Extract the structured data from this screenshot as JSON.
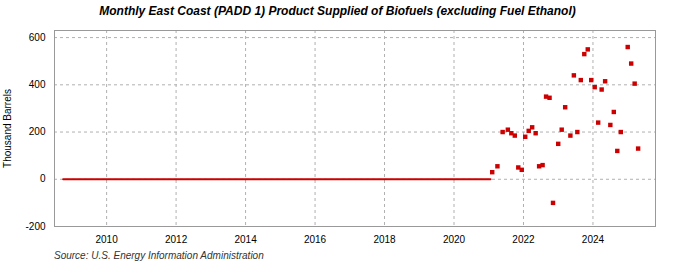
{
  "chart_data": {
    "type": "scatter",
    "title": "Monthly East Coast (PADD 1) Product Supplied of Biofuels (excluding Fuel Ethanol)",
    "ylabel": "Thousand Barrels",
    "source": "Source: U.S. Energy Information Administration",
    "xlim": [
      2008.5,
      2025.8
    ],
    "ylim": [
      -200,
      630
    ],
    "xticks": [
      2010,
      2012,
      2014,
      2016,
      2018,
      2020,
      2022,
      2024
    ],
    "yticks": [
      -200,
      0,
      200,
      400,
      600
    ],
    "grid": true,
    "series": [
      {
        "type": "line",
        "color": "#cc0000",
        "line_style": "solid",
        "x": [
          2008.75,
          2021.05
        ],
        "values": [
          0,
          0
        ]
      },
      {
        "type": "scatter",
        "color": "#cc0000",
        "marker": "square",
        "x": [
          2021.1,
          2021.25,
          2021.4,
          2021.55,
          2021.65,
          2021.75,
          2021.85,
          2021.95,
          2022.05,
          2022.15,
          2022.25,
          2022.35,
          2022.45,
          2022.55,
          2022.65,
          2022.75,
          2022.85,
          2023.0,
          2023.1,
          2023.2,
          2023.35,
          2023.45,
          2023.55,
          2023.65,
          2023.75,
          2023.85,
          2023.95,
          2024.05,
          2024.15,
          2024.25,
          2024.35,
          2024.5,
          2024.6,
          2024.7,
          2024.8,
          2025.0,
          2025.1,
          2025.2,
          2025.3
        ],
        "values": [
          30,
          55,
          200,
          210,
          195,
          185,
          50,
          40,
          180,
          205,
          220,
          195,
          55,
          60,
          350,
          345,
          -100,
          150,
          210,
          305,
          185,
          440,
          200,
          420,
          530,
          550,
          420,
          390,
          240,
          380,
          415,
          230,
          285,
          120,
          200,
          560,
          490,
          405,
          130
        ]
      }
    ]
  }
}
